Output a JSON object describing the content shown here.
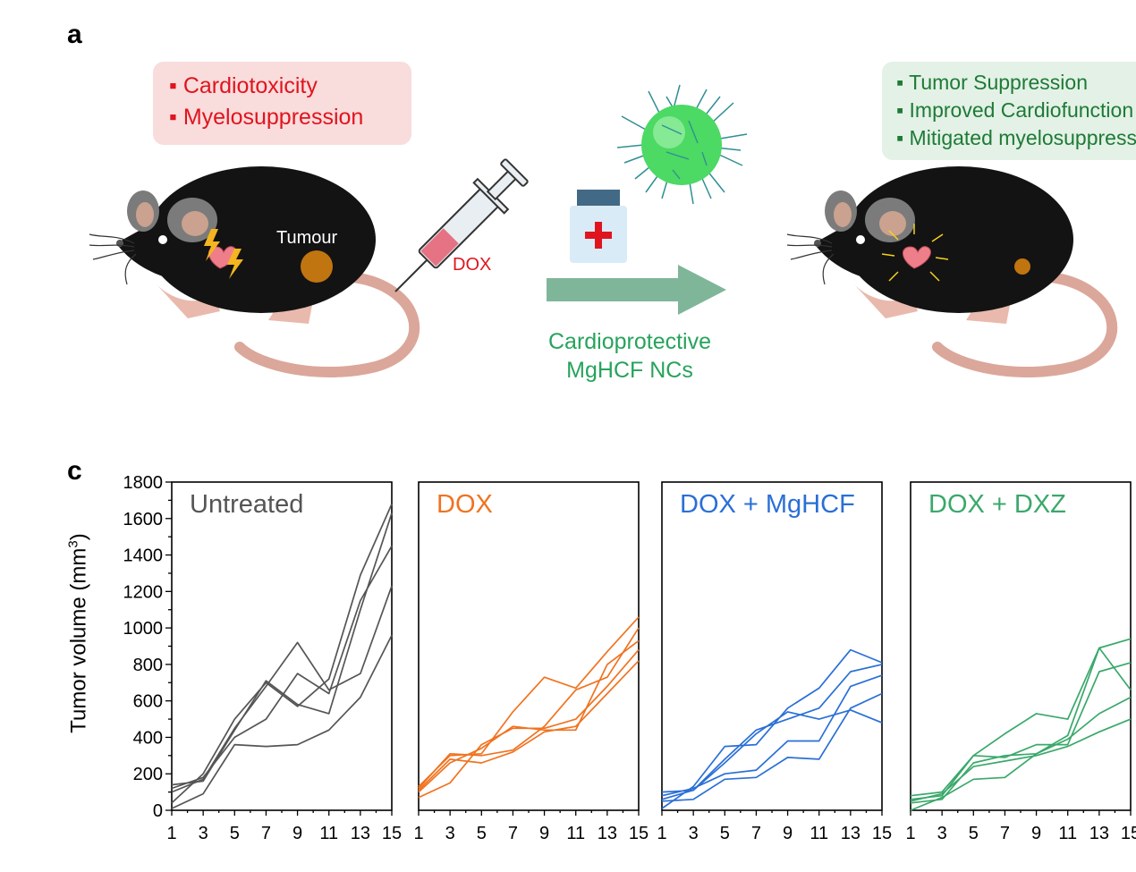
{
  "panel_a": {
    "label": "a",
    "toxicities": [
      "Cardiotoxicity",
      "Myelosuppression"
    ],
    "tumour_label": "Tumour",
    "drug_label": "DOX",
    "treatment_label_line1": "Cardioprotective",
    "treatment_label_line2": "MgHCF NCs",
    "outcomes": [
      "Tumor Suppression",
      "Improved Cardiofunction",
      "Mitigated myelosuppression"
    ],
    "colors": {
      "toxicity": "#e0141e",
      "outcome": "#1e7a36",
      "arrow": "#7fb69a",
      "nanoparticle": "#4cd964"
    },
    "icons": [
      "mouse-icon",
      "heart-icon",
      "lightning-icon",
      "syringe-icon",
      "medicine-bottle-icon",
      "nanoparticle-icon",
      "arrow-icon"
    ]
  },
  "panel_c": {
    "label": "c",
    "ylabel": "Tumor volume (mm",
    "ylabel_sup": "3",
    "ylabel_close": ")"
  },
  "chart_data": [
    {
      "type": "line",
      "title": "Untreated",
      "color": "#555555",
      "x": [
        1,
        3,
        5,
        7,
        9,
        11,
        13,
        15
      ],
      "ylim": [
        0,
        1800
      ],
      "xlim": [
        1,
        15
      ],
      "series": [
        {
          "values": [
            40,
            200,
            500,
            700,
            570,
            720,
            1290,
            1680
          ]
        },
        {
          "values": [
            10,
            90,
            360,
            350,
            360,
            440,
            620,
            960
          ]
        },
        {
          "values": [
            140,
            160,
            440,
            710,
            580,
            530,
            1100,
            1630
          ]
        },
        {
          "values": [
            120,
            180,
            400,
            500,
            750,
            640,
            1150,
            1450
          ]
        },
        {
          "values": [
            100,
            170,
            450,
            680,
            920,
            660,
            750,
            1230
          ]
        }
      ]
    },
    {
      "type": "line",
      "title": "DOX",
      "color": "#f07320",
      "x": [
        1,
        3,
        5,
        7,
        9,
        11,
        13,
        15
      ],
      "ylim": [
        0,
        1800
      ],
      "xlim": [
        1,
        15
      ],
      "series": [
        {
          "values": [
            130,
            300,
            310,
            540,
            730,
            670,
            870,
            1060
          ]
        },
        {
          "values": [
            100,
            260,
            340,
            460,
            440,
            440,
            800,
            930
          ]
        },
        {
          "values": [
            70,
            150,
            360,
            450,
            450,
            500,
            680,
            880
          ]
        },
        {
          "values": [
            110,
            280,
            260,
            320,
            430,
            460,
            640,
            820
          ]
        },
        {
          "values": [
            120,
            310,
            300,
            330,
            460,
            660,
            730,
            1000
          ]
        }
      ]
    },
    {
      "type": "line",
      "title": "DOX + MgHCF",
      "color": "#2a6fd6",
      "x": [
        1,
        3,
        5,
        7,
        9,
        11,
        13,
        15
      ],
      "ylim": [
        0,
        1800
      ],
      "xlim": [
        1,
        15
      ],
      "series": [
        {
          "values": [
            10,
            130,
            350,
            360,
            560,
            670,
            880,
            810
          ]
        },
        {
          "values": [
            60,
            110,
            260,
            420,
            540,
            500,
            550,
            480
          ]
        },
        {
          "values": [
            50,
            60,
            170,
            180,
            290,
            280,
            560,
            640
          ]
        },
        {
          "values": [
            100,
            110,
            280,
            440,
            500,
            560,
            760,
            800
          ]
        },
        {
          "values": [
            80,
            120,
            200,
            220,
            380,
            380,
            680,
            740
          ]
        }
      ]
    },
    {
      "type": "line",
      "title": "DOX + DXZ",
      "color": "#3aa86a",
      "x": [
        1,
        3,
        5,
        7,
        9,
        11,
        13,
        15
      ],
      "ylim": [
        0,
        1800
      ],
      "xlim": [
        1,
        15
      ],
      "series": [
        {
          "values": [
            80,
            100,
            300,
            420,
            530,
            500,
            890,
            940
          ]
        },
        {
          "values": [
            60,
            80,
            300,
            290,
            360,
            360,
            760,
            810
          ]
        },
        {
          "values": [
            0,
            70,
            170,
            180,
            310,
            390,
            530,
            620
          ]
        },
        {
          "values": [
            40,
            60,
            260,
            300,
            310,
            410,
            890,
            660
          ]
        },
        {
          "values": [
            50,
            90,
            240,
            270,
            300,
            350,
            430,
            500
          ]
        }
      ]
    }
  ]
}
